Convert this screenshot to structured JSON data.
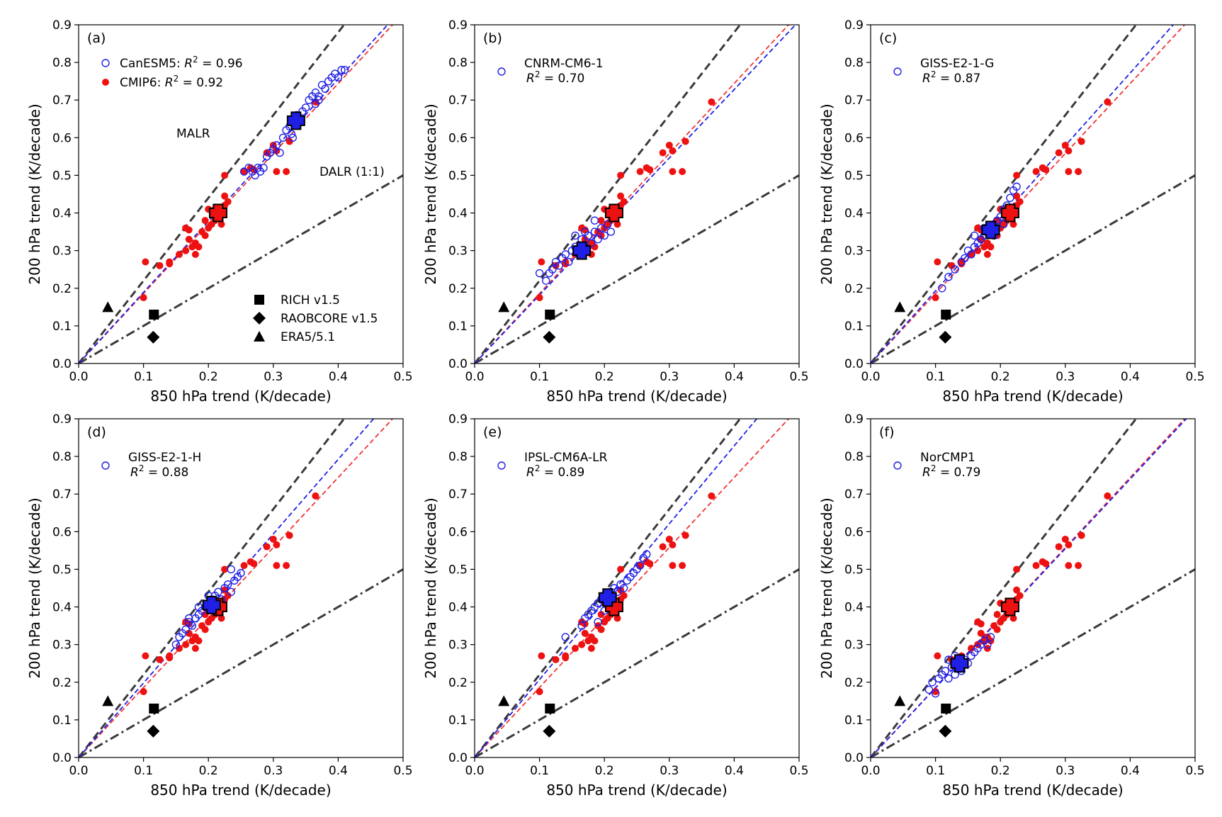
{
  "figure": {
    "xlabel": "850 hPa trend (K/decade)",
    "ylabel": "200 hPa trend (K/decade)",
    "xlim": [
      0,
      0.5
    ],
    "ylim": [
      0,
      0.9
    ],
    "xticks": [
      "0.0",
      "0.1",
      "0.2",
      "0.3",
      "0.4",
      "0.5"
    ],
    "yticks": [
      "0.0",
      "0.1",
      "0.2",
      "0.3",
      "0.4",
      "0.5",
      "0.6",
      "0.7",
      "0.8",
      "0.9"
    ],
    "annotations": {
      "malr": "MALR",
      "dalr": "DALR (1:1)"
    },
    "obs_legend": [
      "RICH v1.5",
      "RAOBCORE v1.5",
      "ERA5/5.1"
    ],
    "cmip6_legend": "CMIP6:",
    "cmip6_r2": "0.92",
    "r2_prefix": "R",
    "r2_sup": "2",
    "r2_eq": " = ",
    "colors": {
      "model": "#1f1fe6",
      "cmip6": "#ee1111",
      "ref": "#3a3a3a",
      "obs": "#000000"
    }
  },
  "chart_data": [
    {
      "type": "scatter",
      "panel": "(a)",
      "model": "CanESM5:",
      "r2": "0.96",
      "model_mean": [
        0.335,
        0.645
      ],
      "model_fit_slope": 1.89,
      "model_points": [
        [
          0.255,
          0.51
        ],
        [
          0.262,
          0.52
        ],
        [
          0.268,
          0.51
        ],
        [
          0.272,
          0.5
        ],
        [
          0.276,
          0.52
        ],
        [
          0.28,
          0.51
        ],
        [
          0.285,
          0.52
        ],
        [
          0.29,
          0.55
        ],
        [
          0.295,
          0.56
        ],
        [
          0.3,
          0.57
        ],
        [
          0.305,
          0.58
        ],
        [
          0.31,
          0.56
        ],
        [
          0.315,
          0.6
        ],
        [
          0.32,
          0.62
        ],
        [
          0.325,
          0.63
        ],
        [
          0.328,
          0.61
        ],
        [
          0.332,
          0.64
        ],
        [
          0.336,
          0.66
        ],
        [
          0.34,
          0.65
        ],
        [
          0.345,
          0.67
        ],
        [
          0.35,
          0.68
        ],
        [
          0.355,
          0.7
        ],
        [
          0.36,
          0.71
        ],
        [
          0.365,
          0.72
        ],
        [
          0.37,
          0.71
        ],
        [
          0.375,
          0.74
        ],
        [
          0.38,
          0.73
        ],
        [
          0.385,
          0.75
        ],
        [
          0.39,
          0.76
        ],
        [
          0.395,
          0.77
        ],
        [
          0.4,
          0.76
        ],
        [
          0.405,
          0.78
        ],
        [
          0.41,
          0.78
        ],
        [
          0.365,
          0.69
        ],
        [
          0.37,
          0.7
        ],
        [
          0.33,
          0.6
        ]
      ],
      "show_obs_legend": true
    },
    {
      "type": "scatter",
      "panel": "(b)",
      "model": "CNRM-CM6-1",
      "r2": "0.70",
      "model_mean": [
        0.165,
        0.3
      ],
      "model_fit_slope": 1.82,
      "model_points": [
        [
          0.1,
          0.24
        ],
        [
          0.11,
          0.22
        ],
        [
          0.115,
          0.24
        ],
        [
          0.12,
          0.25
        ],
        [
          0.125,
          0.27
        ],
        [
          0.13,
          0.26
        ],
        [
          0.135,
          0.28
        ],
        [
          0.14,
          0.29
        ],
        [
          0.145,
          0.27
        ],
        [
          0.15,
          0.3
        ],
        [
          0.155,
          0.31
        ],
        [
          0.16,
          0.29
        ],
        [
          0.165,
          0.33
        ],
        [
          0.17,
          0.31
        ],
        [
          0.175,
          0.34
        ],
        [
          0.18,
          0.32
        ],
        [
          0.185,
          0.35
        ],
        [
          0.19,
          0.33
        ],
        [
          0.195,
          0.36
        ],
        [
          0.2,
          0.34
        ],
        [
          0.205,
          0.37
        ],
        [
          0.21,
          0.35
        ],
        [
          0.215,
          0.39
        ],
        [
          0.155,
          0.34
        ],
        [
          0.17,
          0.35
        ],
        [
          0.185,
          0.38
        ]
      ],
      "show_obs_legend": false
    },
    {
      "type": "scatter",
      "panel": "(c)",
      "model": "GISS-E2-1-G",
      "r2": "0.87",
      "model_mean": [
        0.185,
        0.355
      ],
      "model_fit_slope": 1.93,
      "model_points": [
        [
          0.11,
          0.2
        ],
        [
          0.12,
          0.23
        ],
        [
          0.13,
          0.25
        ],
        [
          0.14,
          0.27
        ],
        [
          0.145,
          0.28
        ],
        [
          0.15,
          0.3
        ],
        [
          0.155,
          0.29
        ],
        [
          0.16,
          0.31
        ],
        [
          0.165,
          0.32
        ],
        [
          0.17,
          0.33
        ],
        [
          0.175,
          0.34
        ],
        [
          0.18,
          0.35
        ],
        [
          0.185,
          0.36
        ],
        [
          0.19,
          0.37
        ],
        [
          0.195,
          0.38
        ],
        [
          0.2,
          0.39
        ],
        [
          0.205,
          0.41
        ],
        [
          0.21,
          0.42
        ],
        [
          0.215,
          0.44
        ],
        [
          0.22,
          0.46
        ],
        [
          0.225,
          0.47
        ],
        [
          0.16,
          0.34
        ],
        [
          0.175,
          0.36
        ],
        [
          0.19,
          0.34
        ],
        [
          0.205,
          0.37
        ],
        [
          0.215,
          0.41
        ]
      ],
      "show_obs_legend": false
    },
    {
      "type": "scatter",
      "panel": "(d)",
      "model": "GISS-E2-1-H",
      "r2": "0.88",
      "model_mean": [
        0.205,
        0.405
      ],
      "model_fit_slope": 1.98,
      "model_points": [
        [
          0.15,
          0.3
        ],
        [
          0.155,
          0.32
        ],
        [
          0.16,
          0.33
        ],
        [
          0.165,
          0.34
        ],
        [
          0.17,
          0.36
        ],
        [
          0.175,
          0.35
        ],
        [
          0.18,
          0.37
        ],
        [
          0.185,
          0.38
        ],
        [
          0.19,
          0.39
        ],
        [
          0.195,
          0.4
        ],
        [
          0.2,
          0.41
        ],
        [
          0.205,
          0.42
        ],
        [
          0.21,
          0.43
        ],
        [
          0.215,
          0.44
        ],
        [
          0.22,
          0.42
        ],
        [
          0.225,
          0.45
        ],
        [
          0.23,
          0.46
        ],
        [
          0.235,
          0.44
        ],
        [
          0.24,
          0.47
        ],
        [
          0.245,
          0.48
        ],
        [
          0.25,
          0.49
        ],
        [
          0.235,
          0.5
        ],
        [
          0.17,
          0.37
        ],
        [
          0.185,
          0.4
        ],
        [
          0.2,
          0.43
        ]
      ],
      "show_obs_legend": false
    },
    {
      "type": "scatter",
      "panel": "(e)",
      "model": "IPSL-CM6A-LR",
      "r2": "0.89",
      "model_mean": [
        0.205,
        0.425
      ],
      "model_fit_slope": 2.07,
      "model_points": [
        [
          0.14,
          0.32
        ],
        [
          0.165,
          0.35
        ],
        [
          0.17,
          0.37
        ],
        [
          0.175,
          0.38
        ],
        [
          0.18,
          0.39
        ],
        [
          0.185,
          0.4
        ],
        [
          0.19,
          0.41
        ],
        [
          0.195,
          0.42
        ],
        [
          0.2,
          0.43
        ],
        [
          0.205,
          0.41
        ],
        [
          0.21,
          0.44
        ],
        [
          0.215,
          0.45
        ],
        [
          0.22,
          0.44
        ],
        [
          0.225,
          0.46
        ],
        [
          0.23,
          0.45
        ],
        [
          0.235,
          0.47
        ],
        [
          0.24,
          0.48
        ],
        [
          0.245,
          0.49
        ],
        [
          0.25,
          0.5
        ],
        [
          0.255,
          0.51
        ],
        [
          0.26,
          0.53
        ],
        [
          0.265,
          0.54
        ],
        [
          0.19,
          0.36
        ],
        [
          0.2,
          0.39
        ]
      ],
      "show_obs_legend": false
    },
    {
      "type": "scatter",
      "panel": "(f)",
      "model": "NorCMP1",
      "r2": "0.79",
      "model_mean": [
        0.137,
        0.25
      ],
      "model_fit_slope": 1.85,
      "model_points": [
        [
          0.09,
          0.18
        ],
        [
          0.095,
          0.2
        ],
        [
          0.1,
          0.17
        ],
        [
          0.105,
          0.21
        ],
        [
          0.11,
          0.22
        ],
        [
          0.115,
          0.23
        ],
        [
          0.12,
          0.21
        ],
        [
          0.125,
          0.24
        ],
        [
          0.13,
          0.22
        ],
        [
          0.135,
          0.25
        ],
        [
          0.14,
          0.23
        ],
        [
          0.145,
          0.26
        ],
        [
          0.15,
          0.25
        ],
        [
          0.155,
          0.27
        ],
        [
          0.16,
          0.28
        ],
        [
          0.165,
          0.29
        ],
        [
          0.17,
          0.3
        ],
        [
          0.175,
          0.31
        ],
        [
          0.18,
          0.3
        ],
        [
          0.185,
          0.32
        ],
        [
          0.12,
          0.26
        ],
        [
          0.13,
          0.27
        ]
      ],
      "show_obs_legend": false
    }
  ],
  "cmip6_points": [
    [
      0.1,
      0.175
    ],
    [
      0.103,
      0.27
    ],
    [
      0.125,
      0.26
    ],
    [
      0.14,
      0.27
    ],
    [
      0.14,
      0.265
    ],
    [
      0.155,
      0.29
    ],
    [
      0.165,
      0.3
    ],
    [
      0.17,
      0.33
    ],
    [
      0.165,
      0.36
    ],
    [
      0.17,
      0.355
    ],
    [
      0.175,
      0.31
    ],
    [
      0.18,
      0.32
    ],
    [
      0.18,
      0.29
    ],
    [
      0.185,
      0.31
    ],
    [
      0.19,
      0.35
    ],
    [
      0.195,
      0.34
    ],
    [
      0.195,
      0.38
    ],
    [
      0.2,
      0.36
    ],
    [
      0.2,
      0.41
    ],
    [
      0.205,
      0.37
    ],
    [
      0.21,
      0.38
    ],
    [
      0.21,
      0.41
    ],
    [
      0.215,
      0.39
    ],
    [
      0.22,
      0.4
    ],
    [
      0.22,
      0.37
    ],
    [
      0.225,
      0.42
    ],
    [
      0.225,
      0.445
    ],
    [
      0.23,
      0.43
    ],
    [
      0.225,
      0.5
    ],
    [
      0.255,
      0.51
    ],
    [
      0.265,
      0.52
    ],
    [
      0.27,
      0.515
    ],
    [
      0.29,
      0.56
    ],
    [
      0.3,
      0.58
    ],
    [
      0.305,
      0.565
    ],
    [
      0.305,
      0.51
    ],
    [
      0.32,
      0.51
    ],
    [
      0.325,
      0.59
    ],
    [
      0.365,
      0.695
    ]
  ],
  "cmip6_mean": [
    0.215,
    0.4
  ],
  "cmip6_fit_slope": 1.86,
  "malr_slope": 2.2,
  "obs_points": {
    "rich": [
      0.116,
      0.13
    ],
    "raobcore": [
      0.115,
      0.07
    ],
    "era5": [
      0.045,
      0.15
    ]
  }
}
